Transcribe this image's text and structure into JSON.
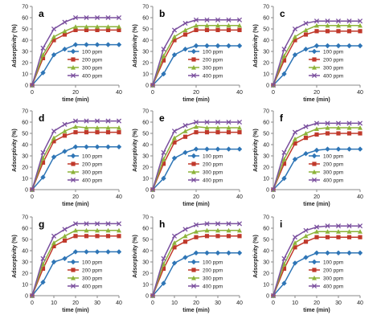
{
  "chart_data": [
    {
      "type": "line",
      "panel_label": "a",
      "xlabel": "time (min)",
      "ylabel": "Adsorptivity (%)",
      "xlim": [
        0,
        40
      ],
      "ylim": [
        0,
        70
      ],
      "xticks": [
        "0",
        "20",
        "40"
      ],
      "yticks": [
        "0",
        "10",
        "20",
        "30",
        "40",
        "50",
        "60",
        "70"
      ],
      "x": [
        0,
        5,
        10,
        15,
        20,
        25,
        30,
        35,
        40
      ],
      "series": [
        {
          "name": "100 ppm",
          "values": [
            0,
            11,
            27,
            32,
            36,
            36,
            36,
            36,
            36
          ]
        },
        {
          "name": "200 ppm",
          "values": [
            0,
            24,
            40,
            45,
            49,
            49,
            49,
            49,
            49
          ]
        },
        {
          "name": "300 ppm",
          "values": [
            0,
            27,
            43,
            48,
            52,
            52,
            52,
            52,
            52
          ]
        },
        {
          "name": "400 ppm",
          "values": [
            0,
            33,
            50,
            56,
            60,
            60,
            60,
            60,
            60
          ]
        }
      ],
      "legend": "bottom-right"
    },
    {
      "type": "line",
      "panel_label": "b",
      "xlabel": "time (min)",
      "ylabel": "Adsorptivity (%)",
      "xlim": [
        0,
        40
      ],
      "ylim": [
        0,
        70
      ],
      "xticks": [
        "0",
        "20",
        "40"
      ],
      "yticks": [
        "0",
        "10",
        "20",
        "30",
        "40",
        "50",
        "60",
        "70"
      ],
      "x": [
        0,
        5,
        10,
        15,
        20,
        25,
        30,
        35,
        40
      ],
      "series": [
        {
          "name": "100 ppm",
          "values": [
            0,
            10,
            27,
            32,
            35,
            35,
            35,
            35,
            35
          ]
        },
        {
          "name": "200 ppm",
          "values": [
            0,
            22,
            40,
            45,
            49,
            49,
            49,
            49,
            49
          ]
        },
        {
          "name": "300 ppm",
          "values": [
            0,
            26,
            43,
            49,
            53,
            53,
            53,
            53,
            53
          ]
        },
        {
          "name": "400 ppm",
          "values": [
            0,
            32,
            49,
            55,
            58,
            58,
            58,
            58,
            58
          ]
        }
      ],
      "legend": "bottom-right"
    },
    {
      "type": "line",
      "panel_label": "c",
      "xlabel": "time (min)",
      "ylabel": "Adsorptivity (%)",
      "xlim": [
        0,
        40
      ],
      "ylim": [
        0,
        70
      ],
      "xticks": [
        "0",
        "20",
        "40"
      ],
      "yticks": [
        "0",
        "10",
        "20",
        "30",
        "40",
        "50",
        "60",
        "70"
      ],
      "x": [
        0,
        5,
        10,
        15,
        20,
        25,
        30,
        35,
        40
      ],
      "series": [
        {
          "name": "100 ppm",
          "values": [
            0,
            10,
            27,
            32,
            35,
            35,
            35,
            35,
            35
          ]
        },
        {
          "name": "200 ppm",
          "values": [
            0,
            22,
            40,
            45,
            48,
            48,
            48,
            48,
            48
          ]
        },
        {
          "name": "300 ppm",
          "values": [
            0,
            26,
            43,
            49,
            53,
            53,
            53,
            53,
            53
          ]
        },
        {
          "name": "400 ppm",
          "values": [
            0,
            32,
            50,
            55,
            57,
            57,
            57,
            57,
            57
          ]
        }
      ],
      "legend": "bottom-right"
    },
    {
      "type": "line",
      "panel_label": "d",
      "xlabel": "time (min)",
      "ylabel": "Adsorptivity (%)",
      "xlim": [
        0,
        40
      ],
      "ylim": [
        0,
        70
      ],
      "xticks": [
        "0",
        "20",
        "40"
      ],
      "yticks": [
        "0",
        "10",
        "20",
        "30",
        "40",
        "50",
        "60",
        "70"
      ],
      "x": [
        0,
        5,
        10,
        15,
        20,
        25,
        30,
        35,
        40
      ],
      "series": [
        {
          "name": "100 ppm",
          "values": [
            0,
            11,
            29,
            34,
            38,
            38,
            38,
            38,
            38
          ]
        },
        {
          "name": "200 ppm",
          "values": [
            0,
            24,
            43,
            48,
            51,
            51,
            51,
            51,
            51
          ]
        },
        {
          "name": "300 ppm",
          "values": [
            0,
            28,
            46,
            52,
            56,
            55,
            55,
            55,
            55
          ]
        },
        {
          "name": "400 ppm",
          "values": [
            0,
            33,
            52,
            58,
            61,
            61,
            61,
            61,
            61
          ]
        }
      ],
      "legend": "bottom-right"
    },
    {
      "type": "line",
      "panel_label": "e",
      "xlabel": "time (min)",
      "ylabel": "Adsorptivity (%)",
      "xlim": [
        0,
        40
      ],
      "ylim": [
        0,
        70
      ],
      "xticks": [
        "0",
        "20",
        "40"
      ],
      "yticks": [
        "0",
        "10",
        "20",
        "30",
        "40",
        "50",
        "60",
        "70"
      ],
      "x": [
        0,
        5,
        10,
        15,
        20,
        25,
        30,
        35,
        40
      ],
      "series": [
        {
          "name": "100 ppm",
          "values": [
            0,
            10,
            28,
            33,
            36,
            36,
            36,
            36,
            36
          ]
        },
        {
          "name": "200 ppm",
          "values": [
            0,
            23,
            42,
            47,
            51,
            51,
            51,
            51,
            51
          ]
        },
        {
          "name": "300 ppm",
          "values": [
            0,
            27,
            46,
            52,
            56,
            55,
            55,
            55,
            55
          ]
        },
        {
          "name": "400 ppm",
          "values": [
            0,
            33,
            52,
            57,
            60,
            60,
            60,
            60,
            60
          ]
        }
      ],
      "legend": "bottom-right"
    },
    {
      "type": "line",
      "panel_label": "f",
      "xlabel": "time (min)",
      "ylabel": "Adsorptivity (%)",
      "xlim": [
        0,
        40
      ],
      "ylim": [
        0,
        70
      ],
      "xticks": [
        "0",
        "20",
        "40"
      ],
      "yticks": [
        "0",
        "10",
        "20",
        "30",
        "40",
        "50",
        "60",
        "70"
      ],
      "x": [
        0,
        5,
        10,
        15,
        20,
        25,
        30,
        35,
        40
      ],
      "series": [
        {
          "name": "100 ppm",
          "values": [
            0,
            10,
            27,
            32,
            35,
            36,
            36,
            36,
            36
          ]
        },
        {
          "name": "200 ppm",
          "values": [
            0,
            23,
            41,
            46,
            49,
            50,
            50,
            50,
            50
          ]
        },
        {
          "name": "300 ppm",
          "values": [
            0,
            27,
            45,
            50,
            54,
            55,
            55,
            55,
            55
          ]
        },
        {
          "name": "400 ppm",
          "values": [
            0,
            33,
            51,
            56,
            59,
            59,
            59,
            59,
            59
          ]
        }
      ],
      "legend": "bottom-right"
    },
    {
      "type": "line",
      "panel_label": "g",
      "xlabel": "time (min)",
      "ylabel": "Adsorptivity (%)",
      "xlim": [
        0,
        40
      ],
      "ylim": [
        0,
        70
      ],
      "xticks": [
        "0",
        "10",
        "20",
        "30",
        "40"
      ],
      "yticks": [
        "0",
        "10",
        "20",
        "30",
        "40",
        "50",
        "60",
        "70"
      ],
      "x": [
        0,
        5,
        10,
        15,
        20,
        25,
        30,
        35,
        40
      ],
      "series": [
        {
          "name": "100 ppm",
          "values": [
            0,
            12,
            30,
            33,
            39,
            39,
            39,
            39,
            39
          ]
        },
        {
          "name": "200 ppm",
          "values": [
            0,
            24,
            44,
            49,
            53,
            53,
            53,
            53,
            53
          ]
        },
        {
          "name": "300 ppm",
          "values": [
            0,
            28,
            47,
            53,
            58,
            58,
            58,
            58,
            58
          ]
        },
        {
          "name": "400 ppm",
          "values": [
            0,
            33,
            53,
            59,
            64,
            64,
            64,
            64,
            64
          ]
        }
      ],
      "legend": "bottom-right"
    },
    {
      "type": "line",
      "panel_label": "h",
      "xlabel": "time (min)",
      "ylabel": "Adsorptivity (%)",
      "xlim": [
        0,
        40
      ],
      "ylim": [
        0,
        70
      ],
      "xticks": [
        "0",
        "10",
        "20",
        "30",
        "40"
      ],
      "yticks": [
        "0",
        "10",
        "20",
        "30",
        "40",
        "50",
        "60",
        "70"
      ],
      "x": [
        0,
        5,
        10,
        15,
        20,
        25,
        30,
        35,
        40
      ],
      "series": [
        {
          "name": "100 ppm",
          "values": [
            0,
            11,
            29,
            34,
            38,
            38,
            38,
            38,
            38
          ]
        },
        {
          "name": "200 ppm",
          "values": [
            0,
            24,
            43,
            48,
            52,
            53,
            53,
            53,
            53
          ]
        },
        {
          "name": "300 ppm",
          "values": [
            0,
            28,
            47,
            53,
            57,
            58,
            58,
            58,
            58
          ]
        },
        {
          "name": "400 ppm",
          "values": [
            0,
            33,
            53,
            59,
            63,
            64,
            64,
            64,
            64
          ]
        }
      ],
      "legend": "bottom-right"
    },
    {
      "type": "line",
      "panel_label": "i",
      "xlabel": "time (min)",
      "ylabel": "Adsorptivity (%)",
      "xlim": [
        0,
        40
      ],
      "ylim": [
        0,
        70
      ],
      "xticks": [
        "0",
        "10",
        "20",
        "30",
        "40"
      ],
      "yticks": [
        "0",
        "10",
        "20",
        "30",
        "40",
        "50",
        "60",
        "70"
      ],
      "x": [
        0,
        5,
        10,
        15,
        20,
        25,
        30,
        35,
        40
      ],
      "series": [
        {
          "name": "100 ppm",
          "values": [
            0,
            11,
            29,
            34,
            38,
            38,
            38,
            38,
            38
          ]
        },
        {
          "name": "200 ppm",
          "values": [
            0,
            24,
            43,
            48,
            52,
            52,
            52,
            52,
            52
          ]
        },
        {
          "name": "300 ppm",
          "values": [
            0,
            28,
            47,
            53,
            57,
            57,
            57,
            57,
            57
          ]
        },
        {
          "name": "400 ppm",
          "values": [
            0,
            33,
            52,
            58,
            61,
            62,
            62,
            62,
            62
          ]
        }
      ],
      "legend": "bottom-right"
    }
  ],
  "style": {
    "colors": [
      "#2e75b6",
      "#c0392b",
      "#8db33a",
      "#7a4f9e"
    ],
    "markers": [
      "diamond",
      "square",
      "triangle",
      "x-cross"
    ],
    "axis_color": "#888888",
    "text_color": "#222222"
  }
}
